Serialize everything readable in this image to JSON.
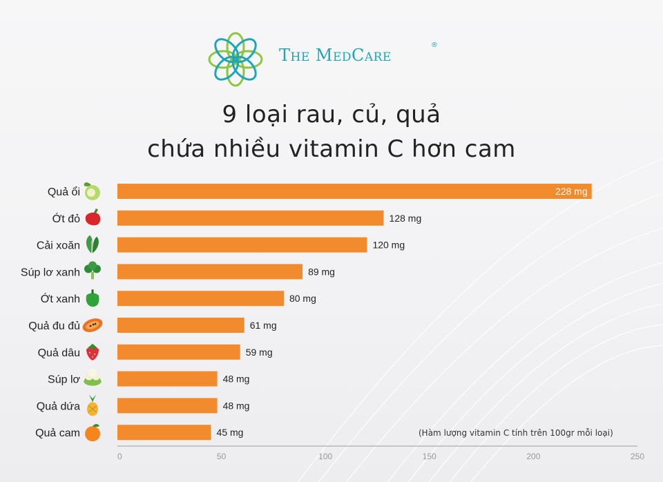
{
  "brand": {
    "name": "The MedCare",
    "reg": "®"
  },
  "title": {
    "line1": "9 loại rau, củ, quả",
    "line2": "chứa nhiều vitamin C hơn cam"
  },
  "note": "(Hàm lượng vitamin C tính trên 100gr mỗi loại)",
  "colors": {
    "bar": "#f28a2e",
    "brand": "#1ca6b8",
    "logo_green": "#8cc63f",
    "text": "#222222"
  },
  "chart_data": {
    "type": "bar",
    "orientation": "horizontal",
    "categories": [
      "Quả ổi",
      "Ớt đỏ",
      "Cải xoăn",
      "Súp lơ xanh",
      "Ớt xanh",
      "Quả đu đủ",
      "Quả dâu",
      "Súp lơ",
      "Quả dứa",
      "Quả cam"
    ],
    "values": [
      228,
      128,
      120,
      89,
      80,
      61,
      59,
      48,
      48,
      45
    ],
    "value_labels": [
      "228 mg",
      "128 mg",
      "120 mg",
      "89 mg",
      "80 mg",
      "61 mg",
      "59 mg",
      "48 mg",
      "48 mg",
      "45 mg"
    ],
    "icons": [
      "guava-icon",
      "red-pepper-icon",
      "kale-icon",
      "broccoli-icon",
      "green-pepper-icon",
      "papaya-icon",
      "strawberry-icon",
      "cauliflower-icon",
      "pineapple-icon",
      "orange-icon"
    ],
    "xlim": [
      0,
      250
    ],
    "xticks": [
      0,
      50,
      100,
      150,
      200,
      250
    ],
    "grid": false
  }
}
